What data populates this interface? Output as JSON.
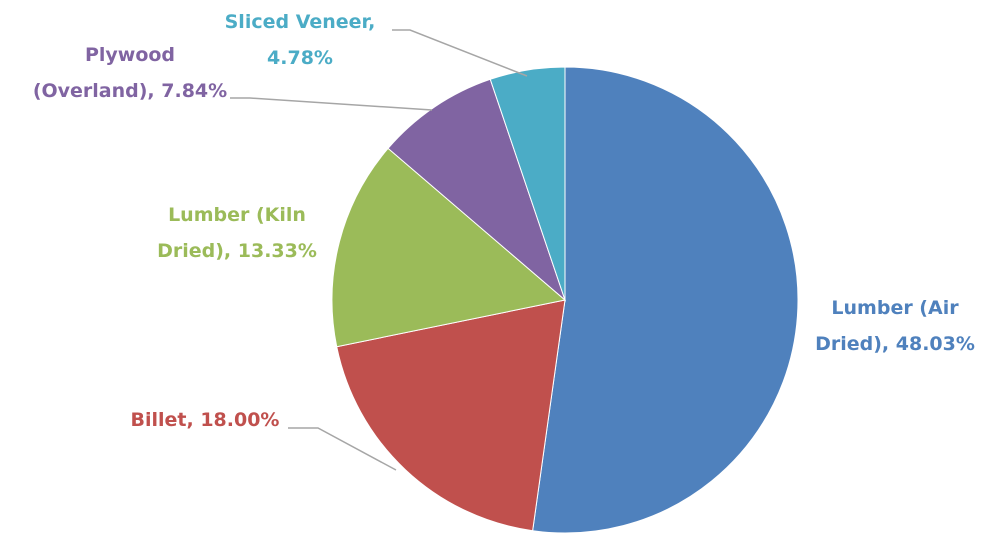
{
  "chart_data": {
    "type": "pie",
    "labels": [
      [
        "Lumber (Air",
        "Dried), 48.03%"
      ],
      [
        "Billet, 18.00%"
      ],
      [
        "Lumber (Kiln",
        "Dried), 13.33%"
      ],
      [
        "Plywood",
        "(Overland), 7.84%"
      ],
      [
        "Sliced Veneer,",
        "4.78%"
      ]
    ],
    "values": [
      48.03,
      18.0,
      13.33,
      7.84,
      4.78
    ],
    "colors": [
      "#4f81bd",
      "#c0504d",
      "#9bbb59",
      "#8064a2",
      "#4bacc6"
    ]
  }
}
